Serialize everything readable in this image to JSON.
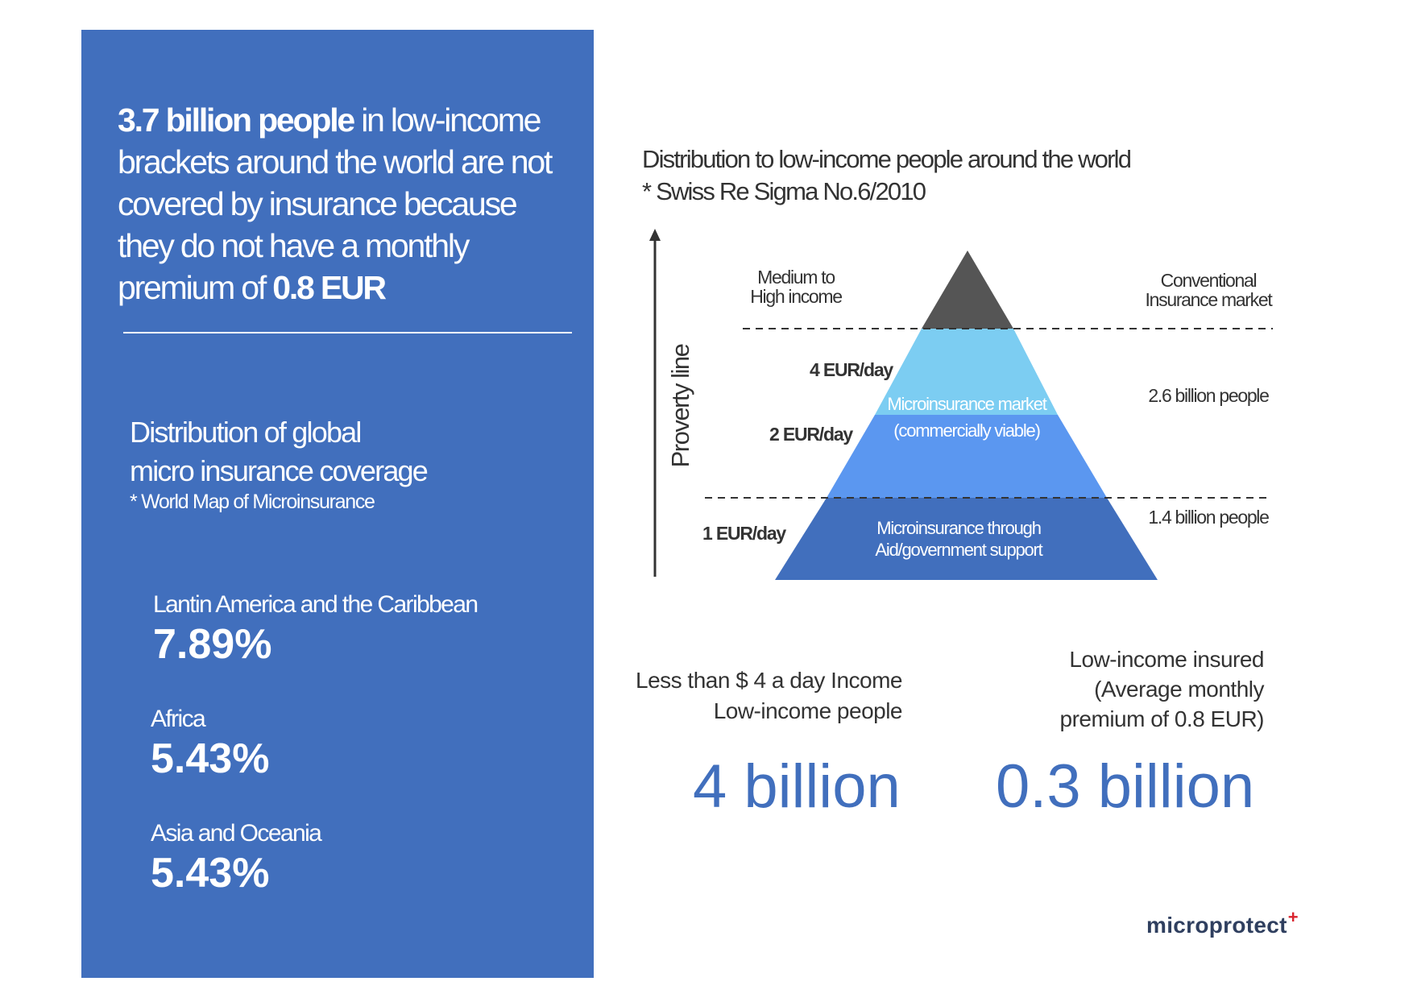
{
  "left_panel": {
    "headline": {
      "bold_lead": "3.7 billion people",
      "line1_rest": " in low-income",
      "line2": "brackets around the world are not",
      "line3": "covered by insurance because",
      "line4": "they do not have a monthly",
      "line5_lead": "premium of ",
      "line5_bold": "0.8 EUR"
    },
    "distribution": {
      "title_line1": "Distribution of global",
      "title_line2": "micro insurance coverage",
      "source": "* World Map of Microinsurance",
      "regions": [
        {
          "name": "Lantin America and the Caribbean",
          "value": "7.89%"
        },
        {
          "name": "Africa",
          "value": "5.43%"
        },
        {
          "name": "Asia and Oceania",
          "value": "5.43%"
        }
      ]
    }
  },
  "pyramid": {
    "title": "Distribution to low-income people around the world",
    "source": "* Swiss Re Sigma No.6/2010",
    "axis_label": "Proverty line",
    "top_left_line1": "Medium to",
    "top_left_line2": "High income",
    "top_right_line1": "Conventional",
    "top_right_line2": "Insurance market",
    "levels": {
      "l4": "4 EUR/day",
      "l2": "2 EUR/day",
      "l1": "1 EUR/day"
    },
    "middle_label_line1": "Microinsurance market",
    "middle_label_line2": "(commercially viable)",
    "bottom_label_line1": "Microinsurance through",
    "bottom_label_line2": "Aid/government support",
    "middle_right": "2.6 billion people",
    "bottom_right": "1.4 billion people",
    "colors": {
      "apex": "#555555",
      "light": "#7ccdf2",
      "mid": "#5b97f0",
      "base": "#416fbd",
      "dash": "#333333"
    }
  },
  "stats": {
    "income_line1": "Less than $ 4 a day Income",
    "income_line2": "Low-income people",
    "income_value": "4 billion",
    "insured_line1": "Low-income insured",
    "insured_line2": "(Average monthly",
    "insured_line3": "premium of 0.8 EUR)",
    "insured_value": "0.3 billion"
  },
  "brand": {
    "name": "microprotect",
    "mark": "+"
  }
}
